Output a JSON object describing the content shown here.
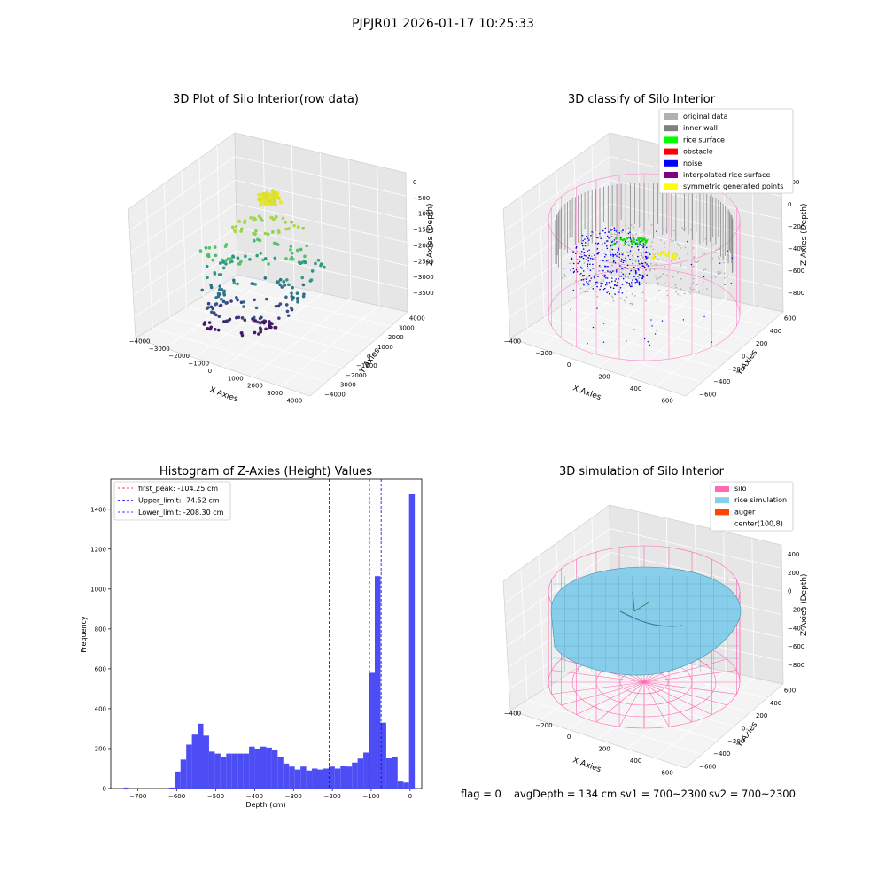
{
  "suptitle": "PJPJR01 2026-01-17 10:25:33",
  "panels": {
    "raw": {
      "title": "3D Plot of Silo Interior(row data)",
      "xlabel": "X Axies",
      "ylabel": "Y Axies",
      "zlabel": "Z Axies (Depth)",
      "x_ticks": [
        "−4000",
        "−3000",
        "−2000",
        "−1000",
        "0",
        "1000",
        "2000",
        "3000",
        "4000"
      ],
      "y_ticks": [
        "−4000",
        "−3000",
        "−2000",
        "−1000",
        "0",
        "1000",
        "2000",
        "3000",
        "4000"
      ],
      "z_ticks": [
        "0",
        "−500",
        "−1000",
        "−1500",
        "−2000",
        "−2500",
        "−3000",
        "−3500"
      ]
    },
    "classify": {
      "title": "3D classify of Silo Interior",
      "xlabel": "X Axies",
      "ylabel": "Y Axies",
      "zlabel": "Z Axies (Depth)",
      "x_ticks": [
        "−400",
        "−200",
        "0",
        "200",
        "400",
        "600"
      ],
      "y_ticks": [
        "−600",
        "−400",
        "−200",
        "0",
        "200",
        "400",
        "600"
      ],
      "z_ticks": [
        "200",
        "0",
        "−200",
        "−400",
        "−600",
        "−800"
      ],
      "z_top_tick": "200",
      "legend": [
        {
          "label": "original data",
          "color": "#b0b0b0"
        },
        {
          "label": "inner wall",
          "color": "#808080"
        },
        {
          "label": "rice surface",
          "color": "#00ff00"
        },
        {
          "label": "obstacle",
          "color": "#ff0000"
        },
        {
          "label": "noise",
          "color": "#0000ff"
        },
        {
          "label": "interpolated rice surface",
          "color": "#800080"
        },
        {
          "label": "symmetric generated points",
          "color": "#ffff00"
        }
      ]
    },
    "simulation": {
      "title": "3D simulation of Silo Interior",
      "xlabel": "X Axies",
      "ylabel": "Y Axies",
      "zlabel": "Z Axies (Depth)",
      "x_ticks": [
        "−400",
        "−200",
        "0",
        "200",
        "400",
        "600"
      ],
      "y_ticks": [
        "−600",
        "−400",
        "−200",
        "0",
        "200",
        "400",
        "600"
      ],
      "z_ticks": [
        "400",
        "200",
        "0",
        "−200",
        "−400",
        "−600",
        "−800"
      ],
      "legend": [
        {
          "label": "silo",
          "color": "#ff69b4"
        },
        {
          "label": "rice simulation",
          "color": "#87ceeb"
        },
        {
          "label": "auger",
          "color": "#ff4500"
        },
        {
          "label": "center(100,8)",
          "color": ""
        }
      ]
    }
  },
  "status": {
    "flag": "flag = 0",
    "avg_depth": "avgDepth = 134 cm",
    "sv1": "sv1 = 700~2300",
    "sv2": "sv2 = 700~2300"
  },
  "chart_data": {
    "type": "bar",
    "title": "Histogram of Z-Axies (Height) Values",
    "xlabel": "Depth (cm)",
    "ylabel": "Frequency",
    "xlim": [
      -770,
      30
    ],
    "ylim": [
      0,
      1550
    ],
    "x_ticks": [
      -700,
      -600,
      -500,
      -400,
      -300,
      -200,
      -100,
      0
    ],
    "y_ticks": [
      0,
      200,
      400,
      600,
      800,
      1000,
      1200,
      1400
    ],
    "bin_width": 14.7,
    "bin_start": -620,
    "values": [
      5,
      85,
      145,
      220,
      270,
      325,
      265,
      185,
      175,
      160,
      175,
      175,
      175,
      175,
      210,
      200,
      210,
      205,
      195,
      160,
      125,
      110,
      95,
      110,
      90,
      100,
      95,
      100,
      110,
      100,
      115,
      110,
      130,
      150,
      180,
      580,
      1065,
      330,
      155,
      160,
      35,
      30,
      1475
    ],
    "extra_bars": [
      {
        "x": -737,
        "value": 5
      }
    ],
    "vlines": [
      {
        "label": "first_peak: -104.25 cm",
        "x": -104.25,
        "color": "#ff0000"
      },
      {
        "label": "Upper_limit: -74.52 cm",
        "x": -74.52,
        "color": "#0000ff"
      },
      {
        "label": "Lower_limit: -208.30 cm",
        "x": -208.3,
        "color": "#0000ff"
      }
    ],
    "bar_color": "#4d4df5"
  }
}
